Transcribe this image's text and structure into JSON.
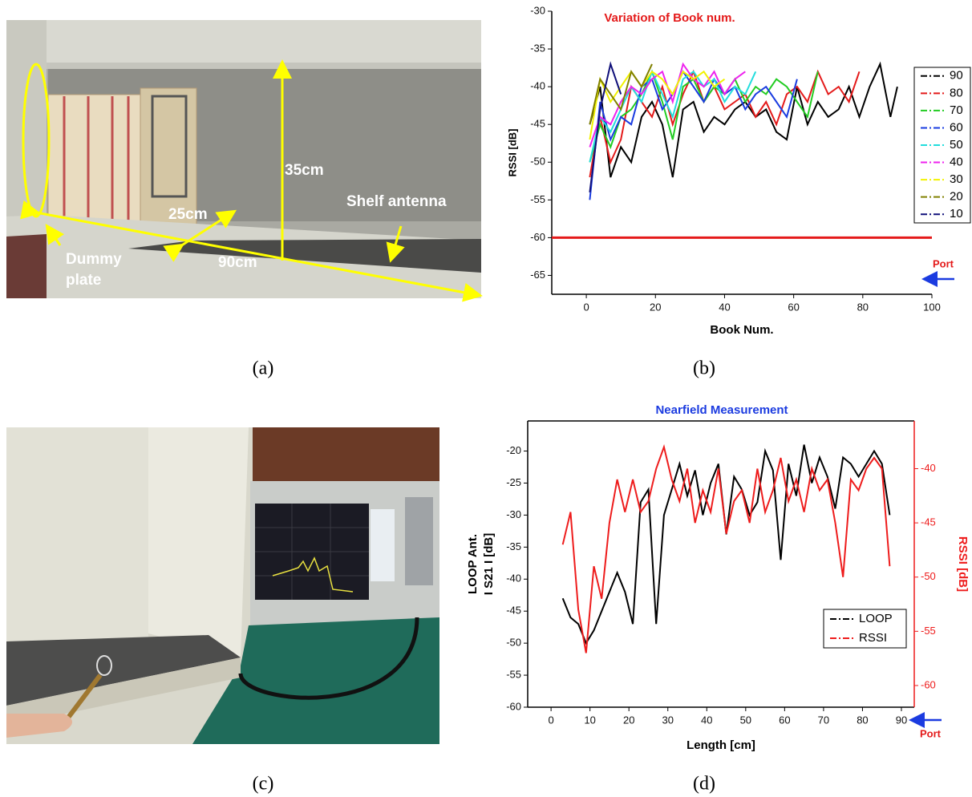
{
  "photo_a": {
    "height_label": "35cm",
    "depth_label": "25cm",
    "length_label": "90cm",
    "antenna_label": "Shelf antenna",
    "dummy_plate": [
      "Dummy",
      "plate"
    ],
    "caption": "(a)"
  },
  "photo_c": {
    "caption": "(c)"
  },
  "chart_data": [
    {
      "type": "line",
      "title": "Variation of Book num.",
      "xlabel": "Book Num.",
      "ylabel": "RSSI [dB]",
      "caption": "(b)",
      "annotation": "Port",
      "xlim": [
        -10,
        100
      ],
      "xticks": [
        0,
        20,
        40,
        60,
        80,
        100
      ],
      "ylim": [
        -67.5,
        -30
      ],
      "yticks": [
        -30,
        -35,
        -40,
        -45,
        -50,
        -55,
        -60,
        -65
      ],
      "reference_line": {
        "value": -60,
        "color": "#e41a1a"
      },
      "legend": "right",
      "series": [
        {
          "name": "90",
          "color": "#000000",
          "x": [
            1,
            4,
            7,
            10,
            13,
            16,
            19,
            22,
            25,
            28,
            31,
            34,
            37,
            40,
            43,
            46,
            49,
            52,
            55,
            58,
            61,
            64,
            67,
            70,
            73,
            76,
            79,
            82,
            85,
            88,
            90
          ],
          "values": [
            -45,
            -40,
            -52,
            -48,
            -50,
            -44,
            -42,
            -45,
            -52,
            -43,
            -42,
            -46,
            -44,
            -45,
            -43,
            -42,
            -44,
            -43,
            -46,
            -47,
            -40,
            -45,
            -42,
            -44,
            -43,
            -40,
            -44,
            -40,
            -37,
            -44,
            -40
          ]
        },
        {
          "name": "80",
          "color": "#e41a1a",
          "x": [
            1,
            4,
            7,
            10,
            13,
            16,
            19,
            22,
            25,
            28,
            31,
            34,
            37,
            40,
            43,
            46,
            49,
            52,
            55,
            58,
            61,
            64,
            67,
            70,
            73,
            76,
            79
          ],
          "values": [
            -52,
            -44,
            -50,
            -47,
            -40,
            -42,
            -44,
            -40,
            -45,
            -41,
            -38,
            -42,
            -40,
            -43,
            -42,
            -41,
            -44,
            -42,
            -45,
            -41,
            -40,
            -42,
            -38,
            -41,
            -40,
            -42,
            -38
          ]
        },
        {
          "name": "70",
          "color": "#22cc22",
          "x": [
            1,
            4,
            7,
            10,
            13,
            16,
            19,
            22,
            25,
            28,
            31,
            34,
            37,
            40,
            43,
            46,
            49,
            52,
            55,
            58,
            61,
            64,
            67
          ],
          "values": [
            -50,
            -45,
            -48,
            -44,
            -43,
            -41,
            -38,
            -42,
            -47,
            -40,
            -39,
            -42,
            -40,
            -41,
            -39,
            -42,
            -40,
            -41,
            -39,
            -40,
            -42,
            -44,
            -38
          ]
        },
        {
          "name": "60",
          "color": "#1a3ce0",
          "x": [
            1,
            4,
            7,
            10,
            13,
            16,
            19,
            22,
            25,
            28,
            31,
            34,
            37,
            40,
            43,
            46,
            49,
            52,
            55,
            58,
            61
          ],
          "values": [
            -55,
            -42,
            -47,
            -44,
            -45,
            -40,
            -39,
            -43,
            -41,
            -38,
            -40,
            -42,
            -39,
            -41,
            -40,
            -43,
            -41,
            -40,
            -42,
            -44,
            -39
          ]
        },
        {
          "name": "50",
          "color": "#22dddd",
          "x": [
            1,
            4,
            7,
            10,
            13,
            16,
            19,
            22,
            25,
            28,
            31,
            34,
            37,
            40,
            43,
            46,
            49
          ],
          "values": [
            -50,
            -44,
            -46,
            -43,
            -40,
            -42,
            -38,
            -41,
            -44,
            -39,
            -38,
            -40,
            -39,
            -42,
            -40,
            -41,
            -38
          ]
        },
        {
          "name": "40",
          "color": "#ee22ee",
          "x": [
            1,
            4,
            7,
            10,
            13,
            16,
            19,
            22,
            25,
            28,
            31,
            34,
            37,
            40,
            43,
            46
          ],
          "values": [
            -48,
            -44,
            -45,
            -42,
            -40,
            -41,
            -39,
            -38,
            -42,
            -37,
            -39,
            -40,
            -38,
            -41,
            -39,
            -38
          ]
        },
        {
          "name": "30",
          "color": "#f2f200",
          "x": [
            1,
            4,
            7,
            10,
            13,
            16,
            19,
            22,
            25,
            28,
            31,
            34,
            37,
            40
          ],
          "values": [
            -47,
            -39,
            -42,
            -40,
            -38,
            -40,
            -38,
            -39,
            -41,
            -38,
            -39,
            -38,
            -40,
            -39
          ]
        },
        {
          "name": "20",
          "color": "#808000",
          "x": [
            1,
            4,
            7,
            10,
            13,
            16,
            19
          ],
          "values": [
            -45,
            -39,
            -41,
            -43,
            -38,
            -40,
            -37
          ]
        },
        {
          "name": "10",
          "color": "#10107a",
          "x": [
            1,
            4,
            7,
            10
          ],
          "values": [
            -54,
            -43,
            -37,
            -41
          ]
        }
      ]
    },
    {
      "type": "line",
      "title": "Nearfield Measurement",
      "xlabel": "Length [cm]",
      "ylabel": [
        "LOOP Ant.",
        "I S21 I [dB]"
      ],
      "y2label": "RSSI [dB]",
      "caption": "(d)",
      "annotation": "Port",
      "legend": "lower right",
      "xlim": [
        -6,
        93.3
      ],
      "xticks": [
        0,
        10,
        20,
        30,
        40,
        50,
        60,
        70,
        80,
        90
      ],
      "ylim": [
        -60,
        -15.3
      ],
      "yticks": [
        -20,
        -25,
        -30,
        -35,
        -40,
        -45,
        -50,
        -55,
        -60
      ],
      "y2lim": [
        -62,
        -35.6
      ],
      "y2ticks": [
        -40,
        -45,
        -50,
        -55,
        -60
      ],
      "series": [
        {
          "name": "LOOP",
          "color": "#000000",
          "x": [
            3,
            5,
            7,
            9,
            11,
            13,
            15,
            17,
            19,
            21,
            23,
            25,
            27,
            29,
            31,
            33,
            35,
            37,
            39,
            41,
            43,
            45,
            47,
            49,
            51,
            53,
            55,
            57,
            59,
            61,
            63,
            65,
            67,
            69,
            71,
            73,
            75,
            77,
            79,
            81,
            83,
            85,
            87
          ],
          "values": [
            -43,
            -46,
            -47,
            -50,
            -48,
            -45,
            -42,
            -39,
            -42,
            -47,
            -28,
            -26,
            -47,
            -30,
            -26,
            -22,
            -27,
            -23,
            -30,
            -25,
            -22,
            -33,
            -24,
            -26,
            -30,
            -28,
            -20,
            -23,
            -37,
            -22,
            -27,
            -19,
            -25,
            -21,
            -24,
            -29,
            -21,
            -22,
            -24,
            -22,
            -20,
            -22,
            -30
          ]
        },
        {
          "name": "RSSI",
          "color": "#ee1c1c",
          "axis": "y2",
          "x": [
            3,
            5,
            7,
            9,
            11,
            13,
            15,
            17,
            19,
            21,
            23,
            25,
            27,
            29,
            31,
            33,
            35,
            37,
            39,
            41,
            43,
            45,
            47,
            49,
            51,
            53,
            55,
            57,
            59,
            61,
            63,
            65,
            67,
            69,
            71,
            73,
            75,
            77,
            79,
            81,
            83,
            85,
            87
          ],
          "values": [
            -47,
            -44,
            -53,
            -57,
            -49,
            -52,
            -45,
            -41,
            -44,
            -41,
            -44,
            -43,
            -40,
            -38,
            -41,
            -43,
            -40,
            -45,
            -42,
            -44,
            -40,
            -46,
            -43,
            -42,
            -45,
            -40,
            -44,
            -42,
            -39,
            -43,
            -41,
            -44,
            -40,
            -42,
            -41,
            -45,
            -50,
            -41,
            -42,
            -40,
            -39,
            -40,
            -49
          ]
        }
      ]
    }
  ]
}
